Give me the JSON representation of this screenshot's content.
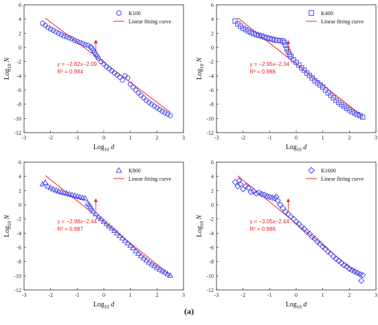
{
  "caption": "(a)",
  "colors": {
    "marker": "#4444ee",
    "fit": "#ee3333",
    "annotation": "#ee2222",
    "axis": "#222222"
  },
  "chart_data": [
    {
      "type": "scatter",
      "marker": "circle",
      "legend": {
        "series": "K100",
        "fit": "Linear fitting curve",
        "placement": "top-right"
      },
      "xlabel": "Log10 d",
      "ylabel": "Log10 N",
      "xlim": [
        -3,
        3
      ],
      "ylim": [
        -12,
        6
      ],
      "xticks": [
        -3,
        -2,
        -1,
        0,
        1,
        2,
        3
      ],
      "yticks": [
        6,
        4,
        2,
        0,
        -2,
        -4,
        -6,
        -8,
        -10,
        -12
      ],
      "fit": {
        "equation": "y = −2.82x−2.09",
        "r2_label": "R² = 0.984",
        "slope": -2.82,
        "intercept": -2.09,
        "x_range": [
          -2.2,
          2.5
        ]
      },
      "annotation_arrow": {
        "from": [
          -0.3,
          -0.6
        ],
        "to": [
          -0.3,
          1.0
        ]
      },
      "data": {
        "x": [
          -2.3,
          -2.2,
          -2.1,
          -2.0,
          -1.9,
          -1.8,
          -1.7,
          -1.6,
          -1.5,
          -1.4,
          -1.3,
          -1.2,
          -1.1,
          -1.0,
          -0.9,
          -0.8,
          -0.7,
          -0.6,
          -0.5,
          -0.45,
          -0.4,
          -0.35,
          -0.3,
          -0.25,
          -0.2,
          -0.1,
          0.0,
          0.1,
          0.2,
          0.3,
          0.4,
          0.5,
          0.6,
          0.7,
          0.8,
          0.9,
          1.0,
          1.1,
          1.2,
          1.3,
          1.4,
          1.5,
          1.6,
          1.7,
          1.8,
          1.9,
          2.0,
          2.1,
          2.2,
          2.3,
          2.4,
          2.5
        ],
        "y": [
          3.4,
          3.1,
          2.8,
          2.6,
          2.4,
          2.2,
          2.0,
          1.8,
          1.6,
          1.5,
          1.35,
          1.2,
          1.0,
          0.85,
          0.7,
          0.55,
          0.4,
          0.3,
          0.1,
          -0.1,
          -0.4,
          -0.7,
          -1.0,
          -1.3,
          -1.55,
          -2.0,
          -2.35,
          -2.7,
          -3.0,
          -3.3,
          -3.6,
          -3.9,
          -4.2,
          -4.6,
          -4.0,
          -4.3,
          -5.2,
          -5.6,
          -6.0,
          -6.4,
          -6.75,
          -7.1,
          -7.45,
          -7.75,
          -8.0,
          -8.25,
          -8.5,
          -8.75,
          -9.0,
          -9.2,
          -9.4,
          -9.6
        ]
      }
    },
    {
      "type": "scatter",
      "marker": "square",
      "legend": {
        "series": "K400",
        "fit": "Linear fitting curve",
        "placement": "top-right"
      },
      "xlabel": "Log10 d",
      "ylabel": "Log10 N",
      "xlim": [
        -3,
        3
      ],
      "ylim": [
        -12,
        6
      ],
      "xticks": [
        -3,
        -2,
        -1,
        0,
        1,
        2,
        3
      ],
      "yticks": [
        6,
        4,
        2,
        0,
        -2,
        -4,
        -6,
        -8,
        -10,
        -12
      ],
      "fit": {
        "equation": "y = −2.95x−2.34",
        "r2_label": "R² = 0.988",
        "slope": -2.95,
        "intercept": -2.34,
        "x_range": [
          -2.2,
          2.5
        ]
      },
      "annotation_arrow": {
        "from": [
          -0.3,
          -0.7
        ],
        "to": [
          -0.3,
          0.9
        ]
      },
      "data": {
        "x": [
          -2.3,
          -2.2,
          -2.1,
          -2.0,
          -1.9,
          -1.8,
          -1.7,
          -1.6,
          -1.5,
          -1.4,
          -1.3,
          -1.2,
          -1.1,
          -1.0,
          -0.9,
          -0.8,
          -0.7,
          -0.6,
          -0.5,
          -0.45,
          -0.4,
          -0.35,
          -0.3,
          -0.25,
          -0.2,
          -0.1,
          0.0,
          0.1,
          0.2,
          0.3,
          0.4,
          0.5,
          0.6,
          0.7,
          0.8,
          0.9,
          1.0,
          1.1,
          1.2,
          1.3,
          1.4,
          1.5,
          1.6,
          1.7,
          1.8,
          1.9,
          2.0,
          2.1,
          2.2,
          2.3,
          2.4,
          2.5
        ],
        "y": [
          3.7,
          3.3,
          3.0,
          2.7,
          2.5,
          2.3,
          2.1,
          1.95,
          1.8,
          1.7,
          1.6,
          1.45,
          1.35,
          1.25,
          1.15,
          1.05,
          1.0,
          0.95,
          0.9,
          0.7,
          0.3,
          -0.2,
          -0.6,
          -1.0,
          -1.3,
          -1.75,
          -2.1,
          -2.5,
          -2.9,
          -3.2,
          -3.6,
          -3.95,
          -4.3,
          -4.7,
          -5.0,
          -5.3,
          -5.6,
          -6.0,
          -6.4,
          -6.75,
          -7.1,
          -7.45,
          -7.75,
          -8.05,
          -8.3,
          -8.55,
          -8.8,
          -9.05,
          -9.25,
          -9.45,
          -9.6,
          -9.8
        ]
      }
    },
    {
      "type": "scatter",
      "marker": "triangle",
      "legend": {
        "series": "K800",
        "fit": "Linear fitting curve",
        "placement": "top-right"
      },
      "xlabel": "Log10 d",
      "ylabel": "Log10 N",
      "xlim": [
        -3,
        3
      ],
      "ylim": [
        -12,
        6
      ],
      "xticks": [
        -3,
        -2,
        -1,
        0,
        1,
        2,
        3
      ],
      "yticks": [
        6,
        4,
        2,
        0,
        -2,
        -4,
        -6,
        -8,
        -10,
        -12
      ],
      "fit": {
        "equation": "y = −2.98x−2.44",
        "r2_label": "R² = 0.987",
        "slope": -2.98,
        "intercept": -2.44,
        "x_range": [
          -2.2,
          2.5
        ]
      },
      "annotation_arrow": {
        "from": [
          -0.3,
          -0.8
        ],
        "to": [
          -0.3,
          0.8
        ]
      },
      "data": {
        "x": [
          -2.3,
          -2.2,
          -2.1,
          -2.0,
          -1.9,
          -1.8,
          -1.7,
          -1.6,
          -1.5,
          -1.4,
          -1.3,
          -1.2,
          -1.1,
          -1.0,
          -0.9,
          -0.8,
          -0.7,
          -0.6,
          -0.55,
          -0.5,
          -0.45,
          -0.4,
          -0.3,
          -0.2,
          -0.1,
          0.0,
          0.1,
          0.2,
          0.3,
          0.4,
          0.5,
          0.6,
          0.7,
          0.8,
          0.9,
          1.0,
          1.1,
          1.2,
          1.3,
          1.4,
          1.5,
          1.6,
          1.7,
          1.8,
          1.9,
          2.0,
          2.1,
          2.2,
          2.3,
          2.4,
          2.5
        ],
        "y": [
          2.9,
          3.1,
          2.6,
          2.4,
          2.2,
          2.05,
          1.9,
          1.8,
          1.7,
          1.6,
          1.5,
          1.4,
          1.3,
          1.2,
          1.1,
          1.0,
          0.9,
          0.2,
          0.0,
          -0.3,
          -0.6,
          -0.9,
          -1.3,
          -1.7,
          -2.0,
          -2.35,
          -2.7,
          -3.0,
          -3.3,
          -3.65,
          -4.0,
          -4.35,
          -4.7,
          -5.05,
          -5.4,
          -5.75,
          -6.1,
          -6.5,
          -6.85,
          -7.2,
          -7.5,
          -7.8,
          -8.1,
          -8.35,
          -8.6,
          -8.85,
          -9.1,
          -9.3,
          -9.5,
          -9.75,
          -9.95
        ]
      }
    },
    {
      "type": "scatter",
      "marker": "diamond",
      "legend": {
        "series": "K1600",
        "fit": "Linear fitting curve",
        "placement": "top-right"
      },
      "xlabel": "Log10 d",
      "ylabel": "Log10 N",
      "xlim": [
        -3,
        3
      ],
      "ylim": [
        -12,
        6
      ],
      "xticks": [
        -3,
        -2,
        -1,
        0,
        1,
        2,
        3
      ],
      "yticks": [
        6,
        4,
        2,
        0,
        -2,
        -4,
        -6,
        -8,
        -10,
        -12
      ],
      "fit": {
        "equation": "y = −3.05x−2.64",
        "r2_label": "R² = 0.986",
        "slope": -3.05,
        "intercept": -2.64,
        "x_range": [
          -2.2,
          2.5
        ]
      },
      "annotation_arrow": {
        "from": [
          -0.3,
          -0.8
        ],
        "to": [
          -0.3,
          0.8
        ]
      },
      "data": {
        "x": [
          -2.3,
          -2.2,
          -2.15,
          -2.1,
          -2.0,
          -1.9,
          -1.8,
          -1.7,
          -1.6,
          -1.5,
          -1.4,
          -1.3,
          -1.2,
          -1.1,
          -1.0,
          -0.9,
          -0.8,
          -0.75,
          -0.7,
          -0.6,
          -0.5,
          -0.4,
          -0.3,
          -0.2,
          -0.1,
          0.0,
          0.1,
          0.2,
          0.3,
          0.4,
          0.5,
          0.6,
          0.7,
          0.8,
          0.9,
          1.0,
          1.1,
          1.2,
          1.3,
          1.4,
          1.5,
          1.6,
          1.7,
          1.8,
          1.9,
          2.0,
          2.1,
          2.2,
          2.3,
          2.4,
          2.45,
          2.5
        ],
        "y": [
          3.2,
          2.6,
          3.4,
          2.9,
          2.2,
          2.6,
          2.4,
          1.8,
          1.9,
          1.6,
          1.7,
          1.5,
          1.4,
          1.2,
          1.1,
          1.0,
          0.9,
          1.1,
          0.6,
          0.0,
          -0.5,
          -1.0,
          -1.3,
          -1.7,
          -2.0,
          -2.4,
          -2.7,
          -3.1,
          -3.4,
          -3.8,
          -4.1,
          -4.5,
          -4.8,
          -5.2,
          -5.5,
          -5.9,
          -6.2,
          -6.6,
          -6.9,
          -7.3,
          -7.6,
          -7.9,
          -8.2,
          -8.5,
          -8.7,
          -9.0,
          -9.2,
          -9.4,
          -9.6,
          -9.8,
          -10.7,
          -9.9
        ]
      }
    }
  ]
}
